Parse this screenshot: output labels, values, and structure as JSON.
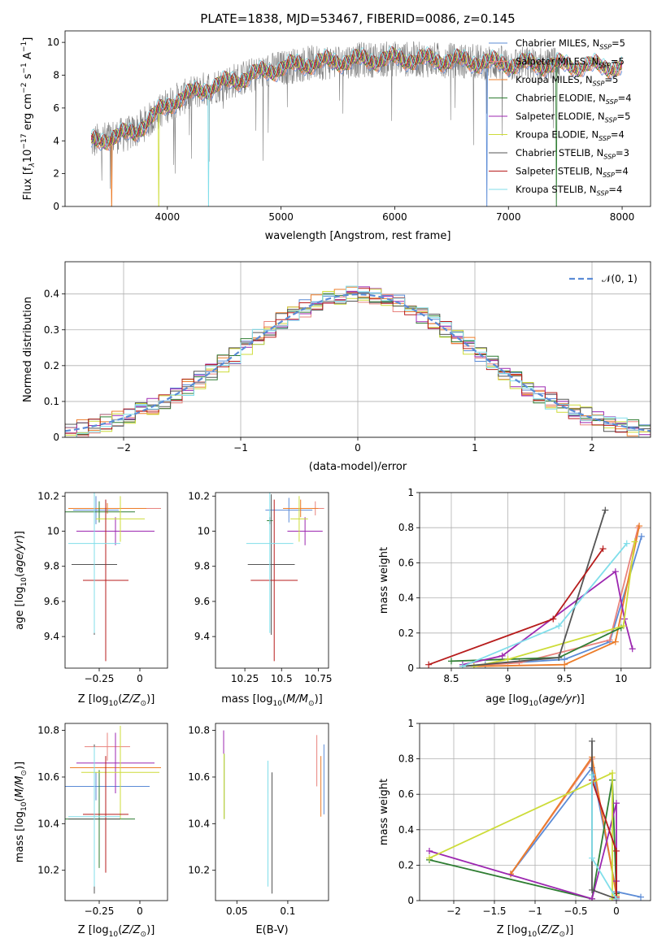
{
  "figure_title": "PLATE=1838, MJD=53467, FIBERID=0086, z=0.145",
  "models": [
    {
      "label": "Chabrier MILES",
      "nssp": "5",
      "color": "#5b8bd6"
    },
    {
      "label": "Salpeter MILES",
      "nssp": "5",
      "color": "#e8837e"
    },
    {
      "label": "Kroupa MILES",
      "nssp": "5",
      "color": "#ec7d2a"
    },
    {
      "label": "Chabrier ELODIE",
      "nssp": "4",
      "color": "#2e7d32"
    },
    {
      "label": "Salpeter ELODIE",
      "nssp": "5",
      "color": "#9c27b0"
    },
    {
      "label": "Kroupa ELODIE",
      "nssp": "4",
      "color": "#cddc39"
    },
    {
      "label": "Chabrier STELIB",
      "nssp": "3",
      "color": "#555555"
    },
    {
      "label": "Salpeter STELIB",
      "nssp": "4",
      "color": "#b71c1c"
    },
    {
      "label": "Kroupa STELIB",
      "nssp": "4",
      "color": "#80deea"
    }
  ],
  "chart_data": [
    {
      "type": "line",
      "xlabel": "wavelength [Angstrom, rest frame]",
      "ylabel": "Flux [f_λ 10^-17 erg cm^-2 s^-1 A^-1]",
      "xlim": [
        3100,
        8250
      ],
      "ylim": [
        0,
        10.7
      ],
      "xticks": [
        4000,
        5000,
        6000,
        7000,
        8000
      ],
      "yticks": [
        0,
        2,
        4,
        6,
        8,
        10
      ],
      "continuum": {
        "x": [
          3330,
          3500,
          3700,
          3850,
          3950,
          4050,
          4300,
          4600,
          4900,
          5200,
          5600,
          6000,
          6500,
          7000,
          7500,
          8000
        ],
        "y": [
          3.9,
          4.2,
          4.5,
          5.3,
          5.9,
          6.4,
          7.1,
          7.7,
          8.3,
          8.7,
          8.9,
          9.0,
          8.9,
          8.7,
          8.6,
          8.5
        ]
      },
      "grid": false,
      "legend": "right"
    },
    {
      "type": "histogram",
      "xlabel": "(data-model)/error",
      "ylabel": "Normed distribution",
      "xlim": [
        -2.5,
        2.5
      ],
      "ylim": [
        0,
        0.49
      ],
      "xticks": [
        -2,
        -1,
        0,
        1,
        2
      ],
      "yticks": [
        0,
        0.1,
        0.2,
        0.3,
        0.4
      ],
      "bin_width": 0.1,
      "reference": {
        "name": "N(0,1)",
        "mean": 0,
        "sigma": 1
      },
      "grid": true,
      "legend": "top-right"
    },
    {
      "type": "scatter",
      "xlabel": "Z [log10(Z/Z⊙)]",
      "ylabel": "age  [log10(age/yr)]",
      "xlim": [
        -0.46,
        0.17
      ],
      "ylim": [
        9.22,
        10.22
      ],
      "xticks": [
        -0.25,
        0.0
      ],
      "yticks": [
        9.4,
        9.6,
        9.8,
        10.0,
        10.2
      ],
      "points": [
        {
          "x": -0.27,
          "y": 10.12,
          "xerr": 0.14,
          "yerr": 0.08
        },
        {
          "x": -0.12,
          "y": 10.13,
          "xerr": 0.25,
          "yerr": 0.04
        },
        {
          "x": -0.2,
          "y": 10.13,
          "xerr": 0.24,
          "yerr": 0.03
        },
        {
          "x": -0.25,
          "y": 10.11,
          "xerr": 0.22,
          "yerr": 0.06
        },
        {
          "x": -0.15,
          "y": 10.0,
          "xerr": 0.24,
          "yerr": 0.08
        },
        {
          "x": -0.12,
          "y": 10.07,
          "xerr": 0.15,
          "yerr": 0.13
        },
        {
          "x": -0.28,
          "y": 9.81,
          "xerr": 0.14,
          "yerr": 0.4
        },
        {
          "x": -0.21,
          "y": 9.72,
          "xerr": 0.14,
          "yerr": 0.46
        },
        {
          "x": -0.28,
          "y": 9.93,
          "xerr": 0.16,
          "yerr": 0.51
        }
      ]
    },
    {
      "type": "scatter",
      "xlabel": "mass [log10(M/M⊙)]",
      "ylabel": "",
      "xlim": [
        10.05,
        10.82
      ],
      "ylim": [
        9.22,
        10.22
      ],
      "xticks": [
        10.25,
        10.5,
        10.75
      ],
      "yticks": [
        9.4,
        9.6,
        9.8,
        10.0,
        10.2
      ],
      "points": [
        {
          "x": 10.55,
          "y": 10.12,
          "xerr": 0.16,
          "yerr": 0.07
        },
        {
          "x": 10.73,
          "y": 10.13,
          "xerr": 0.06,
          "yerr": 0.04
        },
        {
          "x": 10.63,
          "y": 10.13,
          "xerr": 0.12,
          "yerr": 0.05
        },
        {
          "x": 10.42,
          "y": 10.06,
          "xerr": 0.02,
          "yerr": 0.02
        },
        {
          "x": 10.66,
          "y": 10.0,
          "xerr": 0.12,
          "yerr": 0.08
        },
        {
          "x": 10.62,
          "y": 10.07,
          "xerr": 0.06,
          "yerr": 0.13
        },
        {
          "x": 10.43,
          "y": 9.81,
          "xerr": 0.16,
          "yerr": 0.4
        },
        {
          "x": 10.45,
          "y": 9.72,
          "xerr": 0.16,
          "yerr": 0.46
        },
        {
          "x": 10.42,
          "y": 9.93,
          "xerr": 0.16,
          "yerr": 0.51
        }
      ]
    },
    {
      "type": "line",
      "xlabel": "age  [log10(age/yr)]",
      "ylabel": "mass weight",
      "xlim": [
        8.22,
        10.26
      ],
      "ylim": [
        0,
        1
      ],
      "xticks": [
        8.5,
        9.0,
        9.5,
        10.0
      ],
      "yticks": [
        0,
        0.2,
        0.4,
        0.6,
        0.8,
        1.0
      ],
      "series": [
        {
          "x": [
            8.8,
            9.5,
            9.9,
            10.18
          ],
          "y": [
            0.02,
            0.05,
            0.15,
            0.75
          ]
        },
        {
          "x": [
            8.6,
            9.1,
            9.9,
            10.15
          ],
          "y": [
            0.01,
            0.03,
            0.16,
            0.8
          ]
        },
        {
          "x": [
            8.7,
            9.5,
            9.95,
            10.16
          ],
          "y": [
            0.01,
            0.02,
            0.15,
            0.81
          ]
        },
        {
          "x": [
            8.5,
            9.45,
            10.0
          ],
          "y": [
            0.04,
            0.06,
            0.23
          ]
        },
        {
          "x": [
            8.6,
            8.95,
            9.95,
            10.03,
            10.1
          ],
          "y": [
            0.02,
            0.07,
            0.55,
            0.28,
            0.11
          ]
        },
        {
          "x": [
            8.7,
            9.0,
            10.02,
            10.12
          ],
          "y": [
            0.01,
            0.05,
            0.24,
            0.72
          ]
        },
        {
          "x": [
            8.6,
            9.45,
            9.86
          ],
          "y": [
            0.01,
            0.06,
            0.9
          ]
        },
        {
          "x": [
            8.3,
            9.4,
            9.84
          ],
          "y": [
            0.02,
            0.28,
            0.68
          ]
        },
        {
          "x": [
            8.6,
            9.45,
            10.05
          ],
          "y": [
            0.01,
            0.24,
            0.71
          ]
        }
      ],
      "grid": true
    },
    {
      "type": "scatter",
      "xlabel": "Z [log10(Z/Z⊙)]",
      "ylabel": "mass [log10(M/M⊙)]",
      "xlim": [
        -0.46,
        0.17
      ],
      "ylim": [
        10.07,
        10.83
      ],
      "xticks": [
        -0.25,
        0.0
      ],
      "yticks": [
        10.2,
        10.4,
        10.6,
        10.8
      ],
      "points": [
        {
          "x": -0.27,
          "y": 10.56,
          "xerr": 0.33,
          "yerr": 0.06
        },
        {
          "x": -0.2,
          "y": 10.73,
          "xerr": 0.14,
          "yerr": 0.06
        },
        {
          "x": -0.15,
          "y": 10.64,
          "xerr": 0.28,
          "yerr": 0.11
        },
        {
          "x": -0.25,
          "y": 10.42,
          "xerr": 0.22,
          "yerr": 0.21
        },
        {
          "x": -0.15,
          "y": 10.66,
          "xerr": 0.24,
          "yerr": 0.13
        },
        {
          "x": -0.12,
          "y": 10.62,
          "xerr": 0.24,
          "yerr": 0.2
        },
        {
          "x": -0.28,
          "y": 10.42,
          "xerr": 0.16,
          "yerr": 0.32
        },
        {
          "x": -0.21,
          "y": 10.44,
          "xerr": 0.14,
          "yerr": 0.25
        },
        {
          "x": -0.28,
          "y": 10.43,
          "xerr": 0.16,
          "yerr": 0.3
        }
      ]
    },
    {
      "type": "scatter",
      "xlabel": "E(B-V)",
      "ylabel": "",
      "xlim": [
        0.029,
        0.14
      ],
      "ylim": [
        10.07,
        10.83
      ],
      "xticks": [
        0.05,
        0.1
      ],
      "yticks": [
        10.2,
        10.4,
        10.6,
        10.8
      ],
      "points": [
        {
          "x": 0.1355,
          "y": 10.59,
          "yerr": 0.15
        },
        {
          "x": 0.1285,
          "y": 10.67,
          "yerr": 0.11
        },
        {
          "x": 0.1325,
          "y": 10.56,
          "yerr": 0.13
        },
        {
          "x": 0.0375,
          "y": 10.56,
          "yerr": 0.14
        },
        {
          "x": 0.037,
          "y": 10.75,
          "yerr": 0.05
        },
        {
          "x": 0.0375,
          "y": 10.56,
          "yerr": 0.14
        },
        {
          "x": 0.0845,
          "y": 10.36,
          "yerr": 0.26
        },
        {
          "x": 0.0805,
          "y": 10.58,
          "yerr": 0.05
        },
        {
          "x": 0.0805,
          "y": 10.4,
          "yerr": 0.27
        }
      ]
    },
    {
      "type": "line",
      "xlabel": "Z [log10(Z/Z⊙)]",
      "ylabel": "mass weight",
      "xlim": [
        -2.42,
        0.42
      ],
      "ylim": [
        0,
        1
      ],
      "xticks": [
        -2.0,
        -1.5,
        -1.0,
        -0.5,
        0.0
      ],
      "yticks": [
        0,
        0.2,
        0.4,
        0.6,
        0.8,
        1.0
      ],
      "series": [
        {
          "x": [
            -1.3,
            -0.3,
            0.0,
            0.3
          ],
          "y": [
            0.15,
            0.75,
            0.05,
            0.02
          ]
        },
        {
          "x": [
            -1.3,
            -0.3,
            0.0
          ],
          "y": [
            0.15,
            0.8,
            0.04
          ]
        },
        {
          "x": [
            -1.3,
            -0.3,
            0.0,
            0.0
          ],
          "y": [
            0.15,
            0.81,
            0.03,
            0.01
          ]
        },
        {
          "x": [
            -2.3,
            -0.3,
            -0.05,
            0.0
          ],
          "y": [
            0.23,
            0.01,
            0.68,
            0.04
          ]
        },
        {
          "x": [
            -2.3,
            -0.3,
            0.0,
            0.0,
            0.0
          ],
          "y": [
            0.28,
            0.01,
            0.55,
            0.11,
            0.0
          ]
        },
        {
          "x": [
            -2.3,
            -0.05,
            -0.05,
            0.0
          ],
          "y": [
            0.24,
            0.72,
            0.01,
            0.03
          ]
        },
        {
          "x": [
            -0.3,
            -0.3,
            0.0
          ],
          "y": [
            0.9,
            0.06,
            0.01
          ]
        },
        {
          "x": [
            -0.3,
            0.0,
            0.0,
            0.0
          ],
          "y": [
            0.68,
            0.28,
            0.02,
            0.01
          ]
        },
        {
          "x": [
            -0.3,
            -0.3,
            0.0
          ],
          "y": [
            0.71,
            0.24,
            0.01
          ]
        }
      ],
      "grid": true
    }
  ]
}
